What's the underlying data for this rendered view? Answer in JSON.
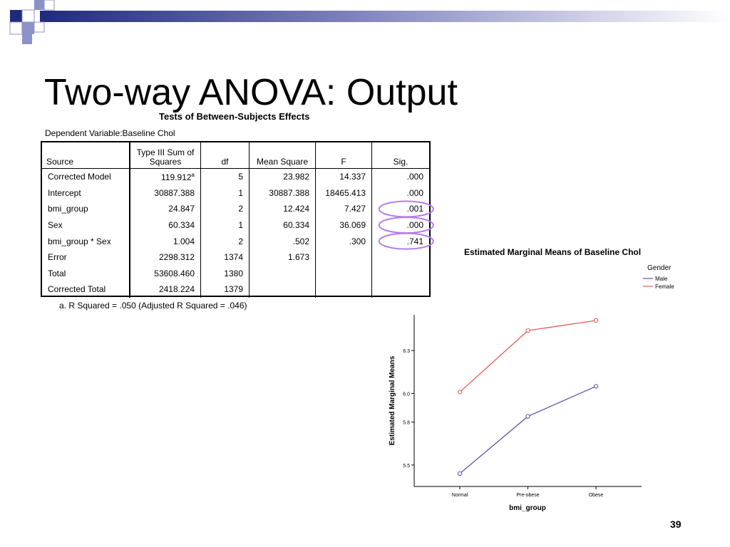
{
  "slide": {
    "title": "Two-way ANOVA: Output",
    "number": "39",
    "colors": {
      "deco_dark": "#1f2a7a",
      "deco_light": "#8c91c7",
      "highlight": "#b47cf0"
    }
  },
  "anova": {
    "caption": "Tests of Between-Subjects Effects",
    "dependent_variable": "Dependent Variable:Baseline Chol",
    "headers": [
      "Source",
      "Type III Sum of Squares",
      "df",
      "Mean Square",
      "F",
      "Sig."
    ],
    "rows": [
      {
        "source": "Corrected Model",
        "ss": "119.912",
        "ss_note": "a",
        "df": "5",
        "ms": "23.982",
        "f": "14.337",
        "sig": ".000"
      },
      {
        "source": "Intercept",
        "ss": "30887.388",
        "ss_note": "",
        "df": "1",
        "ms": "30887.388",
        "f": "18465.413",
        "sig": ".000"
      },
      {
        "source": "bmi_group",
        "ss": "24.847",
        "ss_note": "",
        "df": "2",
        "ms": "12.424",
        "f": "7.427",
        "sig": ".001"
      },
      {
        "source": "Sex",
        "ss": "60.334",
        "ss_note": "",
        "df": "1",
        "ms": "60.334",
        "f": "36.069",
        "sig": ".000"
      },
      {
        "source": "bmi_group * Sex",
        "ss": "1.004",
        "ss_note": "",
        "df": "2",
        "ms": ".502",
        "f": ".300",
        "sig": ".741"
      },
      {
        "source": "Error",
        "ss": "2298.312",
        "ss_note": "",
        "df": "1374",
        "ms": "1.673",
        "f": "",
        "sig": ""
      },
      {
        "source": "Total",
        "ss": "53608.460",
        "ss_note": "",
        "df": "1380",
        "ms": "",
        "f": "",
        "sig": ""
      },
      {
        "source": "Corrected Total",
        "ss": "2418.224",
        "ss_note": "",
        "df": "1379",
        "ms": "",
        "f": "",
        "sig": ""
      }
    ],
    "highlighted_sig_rows": [
      2,
      3,
      4
    ],
    "footnote": "a. R Squared = .050 (Adjusted R Squared = .046)"
  },
  "chart_data": {
    "type": "line",
    "title": "Estimated Marginal Means of Baseline Chol",
    "xlabel": "bmi_group",
    "ylabel": "Estimated Marginal Means",
    "categories": [
      "Normal",
      "Pre-obese",
      "Obese"
    ],
    "legend_title": "Gender",
    "legend_position": "top-right",
    "ylim": [
      5.35,
      6.55
    ],
    "yticks": [
      5.5,
      5.8,
      6.0,
      6.3
    ],
    "ytick_labels": [
      "5.5",
      "5.8",
      "6.0",
      "6.3"
    ],
    "series": [
      {
        "name": "Male",
        "color": "#5b55a8",
        "values": [
          5.44,
          5.84,
          6.05
        ]
      },
      {
        "name": "Female",
        "color": "#e35b5b",
        "values": [
          6.01,
          6.44,
          6.51
        ]
      }
    ]
  }
}
